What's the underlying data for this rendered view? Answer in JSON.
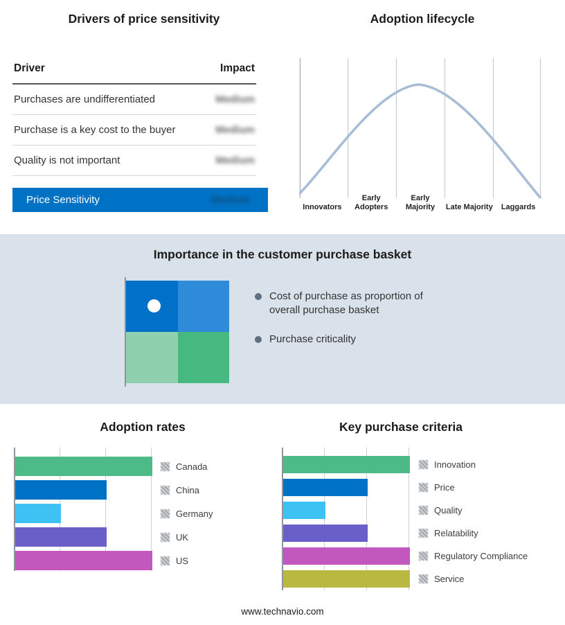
{
  "page": {
    "footer_link": "www.technavio.com"
  },
  "drivers": {
    "title": "Drivers of price sensitivity",
    "columns": {
      "driver": "Driver",
      "impact": "Impact"
    },
    "rows": [
      {
        "label": "Purchases are undifferentiated",
        "impact": "Medium",
        "impact_redacted": true
      },
      {
        "label": "Purchase is a key cost to the buyer",
        "impact": "Medium",
        "impact_redacted": true
      },
      {
        "label": "Quality is not important",
        "impact": "Medium",
        "impact_redacted": true
      }
    ],
    "highlight": {
      "label": "Price Sensitivity",
      "impact": "Medium",
      "impact_redacted": true
    },
    "highlight_color": "#0072C6"
  },
  "basket": {
    "title": "Importance in the customer purchase basket",
    "bullets": [
      "Cost of purchase as proportion of overall purchase basket",
      "Purchase criticality"
    ],
    "quadrant_colors": {
      "top_left": "#0070C8",
      "top_right": "#2E8BD9",
      "bottom_left": "#8FD0AE",
      "bottom_right": "#45B97F"
    }
  },
  "chart_data": [
    {
      "type": "line",
      "title": "Adoption lifecycle",
      "categories": [
        "Innovators",
        "Early Adopters",
        "Early Majority",
        "Late Majority",
        "Laggards"
      ],
      "description": "Bell-shaped adoption curve rising from Innovators, peaking at Early Majority, falling to Laggards",
      "y_normalized": [
        0.05,
        0.55,
        1.0,
        0.55,
        0.05
      ],
      "line_color": "#A9BED6",
      "grid": "vertical category dividers, no y-axis labels"
    },
    {
      "type": "bar",
      "orientation": "horizontal",
      "title": "Adoption rates",
      "categories": [
        "Canada",
        "China",
        "Germany",
        "UK",
        "US"
      ],
      "values": [
        3,
        2,
        1,
        2,
        3
      ],
      "value_note": "axis unlabeled; values in gridline units",
      "colors": [
        "#4CBB87",
        "#0072C6",
        "#3EC2F4",
        "#6A5EC8",
        "#C258BE"
      ],
      "legend_position": "right",
      "legend_swatches": "redacted"
    },
    {
      "type": "bar",
      "orientation": "horizontal",
      "title": "Key purchase criteria",
      "categories": [
        "Innovation",
        "Price",
        "Quality",
        "Relatability",
        "Regulatory Compliance",
        "Service"
      ],
      "values": [
        3,
        2,
        1,
        2,
        3,
        3
      ],
      "value_note": "axis unlabeled; values in gridline units",
      "colors": [
        "#4CBB87",
        "#0072C6",
        "#3EC2F4",
        "#6A5EC8",
        "#C258BE",
        "#B9B942"
      ],
      "legend_position": "right",
      "legend_swatches": "redacted"
    }
  ]
}
